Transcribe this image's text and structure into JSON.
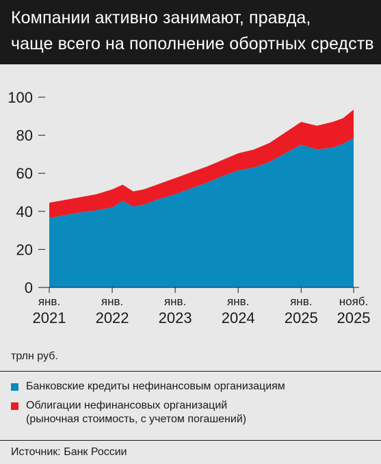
{
  "header": {
    "title_line1": "Компании активно занимают, правда,",
    "title_line2": "чаще всего на пополнение обортных средств"
  },
  "unit": "трлн руб.",
  "legend": {
    "items": [
      {
        "label": "Банковские кредиты нефинансовым организациям",
        "color": "#0b8abe"
      },
      {
        "label_line1": "Облигации нефинансовых организаций",
        "label_line2": "(рыночная стоимость, с учетом погашений)",
        "color": "#ec1c24"
      }
    ]
  },
  "source": "Источник: Банк России",
  "chart_data": {
    "type": "area",
    "stacked": true,
    "ylim": [
      0,
      100
    ],
    "yticks": [
      0,
      20,
      40,
      60,
      80,
      100
    ],
    "xlim": [
      "2021-01",
      "2025-11"
    ],
    "xticks": [
      {
        "at": "2021-01",
        "line1": "янв.",
        "line2": "2021"
      },
      {
        "at": "2022-01",
        "line1": "янв.",
        "line2": "2022"
      },
      {
        "at": "2023-01",
        "line1": "янв.",
        "line2": "2023"
      },
      {
        "at": "2024-01",
        "line1": "янв.",
        "line2": "2024"
      },
      {
        "at": "2025-01",
        "line1": "янв.",
        "line2": "2025"
      },
      {
        "at": "2025-11",
        "line1": "нояб.",
        "line2": "2025"
      }
    ],
    "series": [
      {
        "name": "Банковские кредиты нефинансовым организациям",
        "color": "#0b8abe",
        "points": [
          [
            "2021-01",
            36.5
          ],
          [
            "2021-04",
            38.0
          ],
          [
            "2021-07",
            39.5
          ],
          [
            "2021-10",
            40.5
          ],
          [
            "2022-01",
            42.0
          ],
          [
            "2022-03",
            45.5
          ],
          [
            "2022-05",
            42.5
          ],
          [
            "2022-07",
            43.5
          ],
          [
            "2022-10",
            46.5
          ],
          [
            "2023-01",
            49.0
          ],
          [
            "2023-04",
            52.0
          ],
          [
            "2023-07",
            55.0
          ],
          [
            "2023-10",
            58.5
          ],
          [
            "2024-01",
            61.5
          ],
          [
            "2024-04",
            63.0
          ],
          [
            "2024-07",
            66.0
          ],
          [
            "2024-10",
            70.5
          ],
          [
            "2025-01",
            75.0
          ],
          [
            "2025-04",
            72.5
          ],
          [
            "2025-07",
            73.5
          ],
          [
            "2025-09",
            75.5
          ],
          [
            "2025-11",
            78.5
          ]
        ]
      },
      {
        "name": "Облигации нефинансовых организаций (рыночная стоимость, с учетом погашений)",
        "color": "#ec1c24",
        "points": [
          [
            "2021-01",
            8.0
          ],
          [
            "2021-04",
            8.0
          ],
          [
            "2021-07",
            8.0
          ],
          [
            "2021-10",
            8.5
          ],
          [
            "2022-01",
            9.5
          ],
          [
            "2022-03",
            8.5
          ],
          [
            "2022-05",
            8.0
          ],
          [
            "2022-07",
            8.0
          ],
          [
            "2022-10",
            8.0
          ],
          [
            "2023-01",
            8.5
          ],
          [
            "2023-04",
            8.5
          ],
          [
            "2023-07",
            8.5
          ],
          [
            "2023-10",
            8.5
          ],
          [
            "2024-01",
            9.0
          ],
          [
            "2024-04",
            9.5
          ],
          [
            "2024-07",
            10.0
          ],
          [
            "2024-10",
            11.0
          ],
          [
            "2025-01",
            12.0
          ],
          [
            "2025-04",
            12.5
          ],
          [
            "2025-07",
            13.5
          ],
          [
            "2025-09",
            13.5
          ],
          [
            "2025-11",
            15.0
          ]
        ]
      }
    ]
  }
}
